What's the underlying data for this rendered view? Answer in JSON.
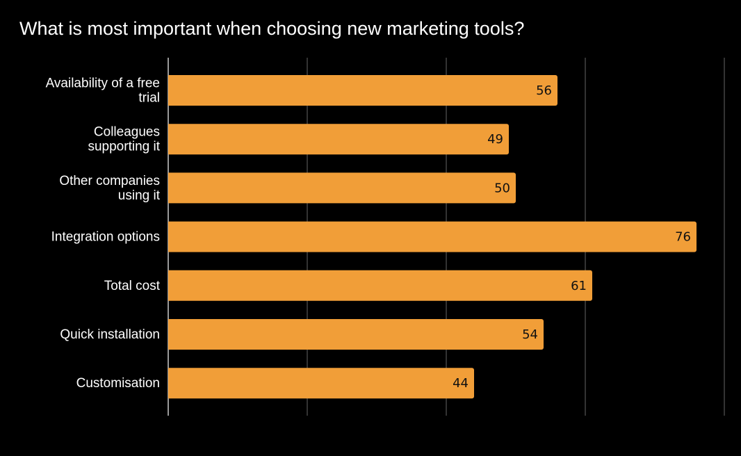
{
  "chart_data": {
    "type": "bar",
    "orientation": "horizontal",
    "title": "What is most important when choosing new marketing tools?",
    "categories": [
      [
        "Availability of a free",
        "trial"
      ],
      [
        "Colleagues",
        "supporting it"
      ],
      [
        "Other companies",
        "using it"
      ],
      [
        "Integration options"
      ],
      [
        "Total cost"
      ],
      [
        "Quick installation"
      ],
      [
        "Customisation"
      ]
    ],
    "values": [
      56,
      49,
      50,
      76,
      61,
      54,
      44
    ],
    "xlim": [
      0,
      80
    ],
    "grid": true,
    "tick_labels_shown": false,
    "data_labels": true,
    "colors": {
      "bar": "#f19e38",
      "background": "#000000",
      "grid": "#444444",
      "text": "#ffffff",
      "label": "#111111"
    }
  }
}
